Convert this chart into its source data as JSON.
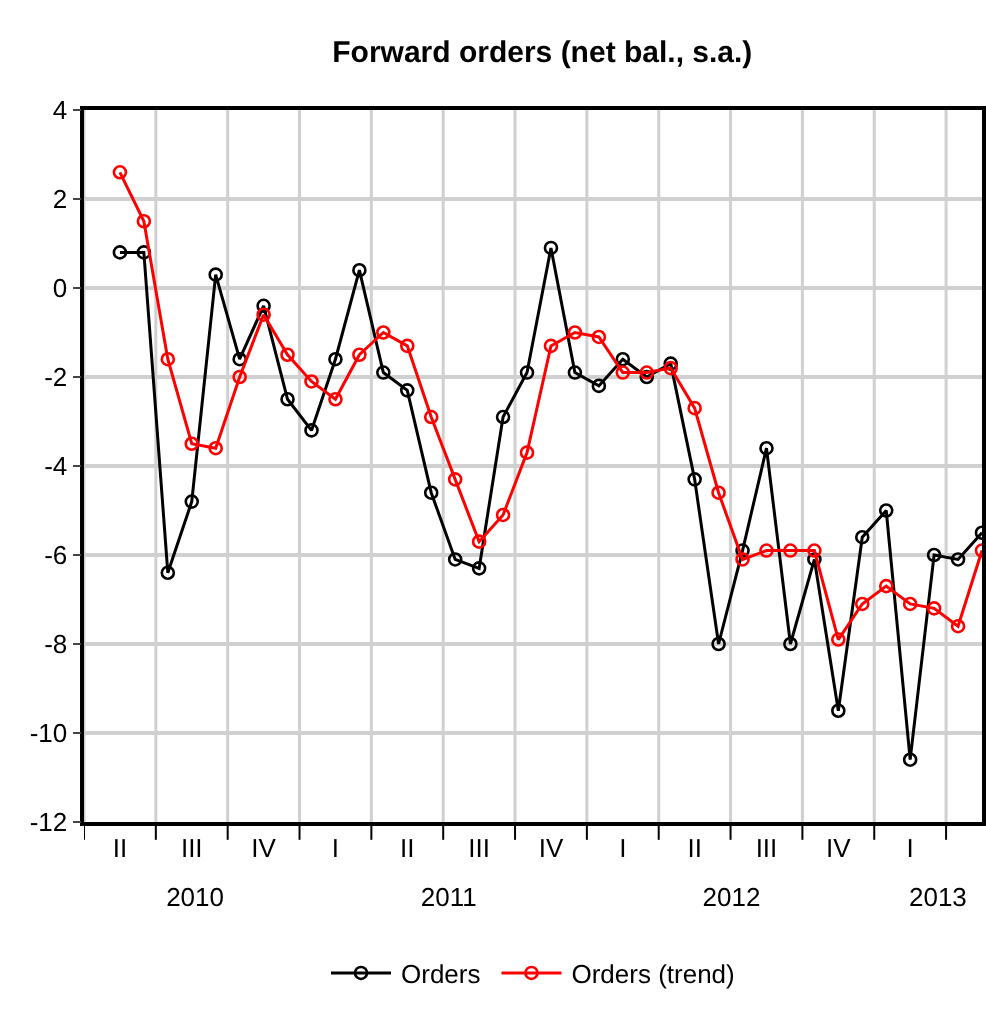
{
  "chart_data": {
    "type": "line",
    "title": "Forward orders (net bal., s.a.)",
    "categories": [
      "II",
      null,
      null,
      "III",
      null,
      null,
      "IV",
      null,
      null,
      "I",
      null,
      null,
      "II",
      null,
      null,
      "III",
      null,
      null,
      "IV",
      null,
      null,
      "I",
      null,
      null,
      "II",
      null,
      null,
      "III",
      null,
      null,
      "IV",
      null,
      null,
      "I",
      null,
      null,
      null
    ],
    "x2lim": [
      "2010-04-01",
      "2013-05-15"
    ],
    "x2ticks": [
      {
        "value": "2010-08-20",
        "label": "2010"
      },
      {
        "value": "2011-07-08",
        "label": "2011"
      },
      {
        "value": "2012-07-01",
        "label": "2012"
      },
      {
        "value": "2013-03-20",
        "label": "2013"
      }
    ],
    "series": [
      {
        "name": "Orders",
        "color": "#000000",
        "values": [
          0.8,
          0.8,
          -6.4,
          -4.8,
          0.3,
          -1.6,
          -0.4,
          -2.5,
          -3.2,
          -1.6,
          0.4,
          -1.9,
          -2.3,
          -4.6,
          -6.1,
          -6.3,
          -2.9,
          -1.9,
          0.9,
          -1.9,
          -2.2,
          -1.6,
          -2.0,
          -1.7,
          -4.3,
          -8.0,
          -5.9,
          -3.6,
          -8.0,
          -6.1,
          -9.5,
          -5.6,
          -5.0,
          -10.6,
          -6.0,
          -6.1,
          -5.5
        ]
      },
      {
        "name": "Orders (trend)",
        "color": "#ff0000",
        "values": [
          2.6,
          1.5,
          -1.6,
          -3.5,
          -3.6,
          -2.0,
          -0.6,
          -1.5,
          -2.1,
          -2.5,
          -1.5,
          -1.0,
          -1.3,
          -2.9,
          -4.3,
          -5.7,
          -5.1,
          -3.7,
          -1.3,
          -1.0,
          -1.1,
          -1.9,
          -1.9,
          -1.8,
          -2.7,
          -4.6,
          -6.1,
          -5.9,
          -5.9,
          -5.9,
          -7.9,
          -7.1,
          -6.7,
          -7.1,
          -7.2,
          -7.6,
          -5.9
        ]
      }
    ],
    "ylim": [
      -12,
      4
    ],
    "yticks": [
      -12,
      -10,
      -8,
      -6,
      -4,
      -2,
      0,
      2,
      4
    ],
    "grid": true,
    "legend": "bottom",
    "marker": "circle",
    "line_style": "solid"
  }
}
